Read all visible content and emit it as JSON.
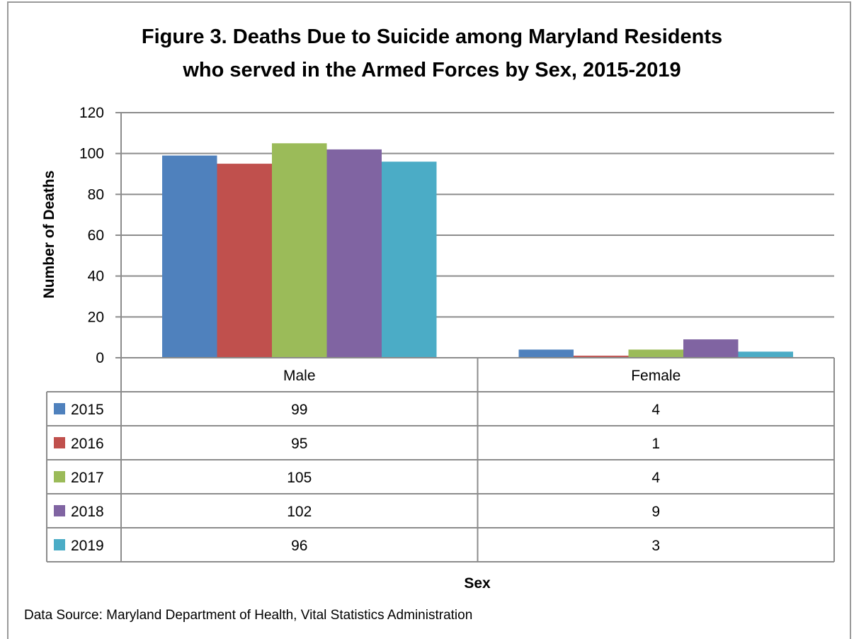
{
  "chart_data": {
    "type": "bar",
    "title_line1": "Figure 3. Deaths Due to Suicide among Maryland Residents",
    "title_line2": "who served in the Armed Forces by Sex, 2015-2019",
    "xlabel": "Sex",
    "ylabel": "Number of Deaths",
    "ylim": [
      0,
      120
    ],
    "yticks": [
      "0",
      "20",
      "40",
      "60",
      "80",
      "100",
      "120"
    ],
    "grid": true,
    "legend": "data-table",
    "categories": [
      "Male",
      "Female"
    ],
    "series": [
      {
        "name": "2015",
        "values": [
          99,
          4
        ],
        "color": "#4F81BD"
      },
      {
        "name": "2016",
        "values": [
          95,
          1
        ],
        "color": "#C0504D"
      },
      {
        "name": "2017",
        "values": [
          105,
          4
        ],
        "color": "#9BBB59"
      },
      {
        "name": "2018",
        "values": [
          102,
          9
        ],
        "color": "#8064A2"
      },
      {
        "name": "2019",
        "values": [
          96,
          3
        ],
        "color": "#4BACC6"
      }
    ],
    "source": "Data Source: Maryland Department of Health, Vital Statistics Administration"
  }
}
